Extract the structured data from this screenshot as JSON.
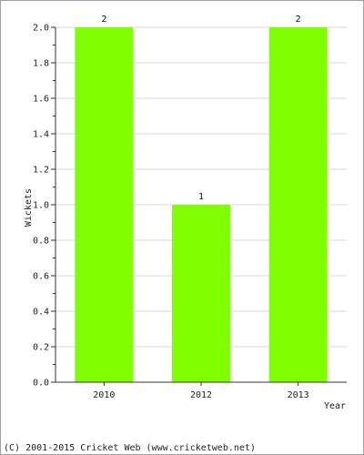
{
  "chart_data": {
    "type": "bar",
    "title": "",
    "categories": [
      "2010",
      "2012",
      "2013"
    ],
    "values": [
      2,
      1,
      2
    ],
    "data_labels": [
      "2",
      "1",
      "2"
    ],
    "xlabel": "Year",
    "ylabel": "Wickets",
    "ylim": [
      0,
      2
    ],
    "yticks": [
      "0.0",
      "0.2",
      "0.4",
      "0.6",
      "0.8",
      "1.0",
      "1.2",
      "1.4",
      "1.6",
      "1.8",
      "2.0"
    ],
    "grid": true,
    "legend": "none",
    "bar_color": "#80ff00",
    "grid_color": "#d8d8d8"
  },
  "footer": {
    "copyright": "(C) 2001-2015 Cricket Web (www.cricketweb.net)"
  }
}
